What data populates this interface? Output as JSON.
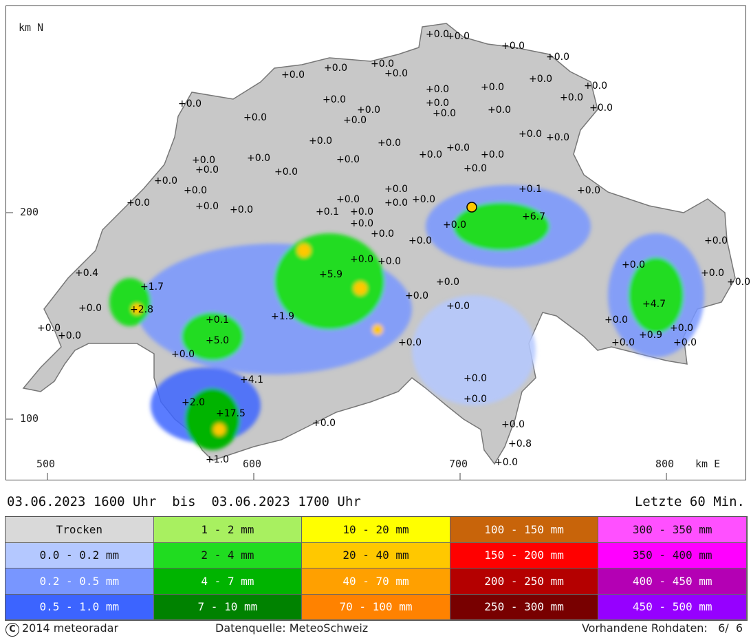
{
  "map": {
    "north_label": "km N",
    "east_label": "km E",
    "y_ticks": [
      "200",
      "100"
    ],
    "x_ticks": [
      "500",
      "600",
      "700",
      "800"
    ],
    "stations": [
      {
        "label": "+0.0"
      },
      {
        "label": "+0.0"
      },
      {
        "label": "+0.0"
      },
      {
        "label": "+0.0"
      },
      {
        "label": "+0.0"
      },
      {
        "label": "+0.0"
      },
      {
        "label": "+0.0"
      },
      {
        "label": "+0.0"
      },
      {
        "label": "+0.0"
      },
      {
        "label": "+0.0"
      },
      {
        "label": "+0.0"
      },
      {
        "label": "+0.0"
      },
      {
        "label": "+0.0"
      },
      {
        "label": "+0.0"
      },
      {
        "label": "+0.0"
      },
      {
        "label": "+0.0"
      },
      {
        "label": "+0.0"
      },
      {
        "label": "+0.0"
      },
      {
        "label": "+0.0"
      },
      {
        "label": "+0.0"
      },
      {
        "label": "+0.0"
      },
      {
        "label": "+0.0"
      },
      {
        "label": "+0.0"
      },
      {
        "label": "+0.0"
      },
      {
        "label": "+0.0"
      },
      {
        "label": "+0.0"
      },
      {
        "label": "+0.0"
      },
      {
        "label": "+0.0"
      },
      {
        "label": "+0.0"
      },
      {
        "label": "+0.0"
      },
      {
        "label": "+0.0"
      },
      {
        "label": "+0.0"
      },
      {
        "label": "+0.0"
      },
      {
        "label": "+0.0"
      },
      {
        "label": "+0.0"
      },
      {
        "label": "+0.0"
      },
      {
        "label": "+0.0"
      },
      {
        "label": "+0.0"
      },
      {
        "label": "+0.0"
      },
      {
        "label": "+0.0"
      },
      {
        "label": "+0.1"
      },
      {
        "label": "+0.0"
      },
      {
        "label": "+0.0"
      },
      {
        "label": "+0.0"
      },
      {
        "label": "+0.0"
      },
      {
        "label": "+0.0"
      },
      {
        "label": "+0.1"
      },
      {
        "label": "+0.0"
      },
      {
        "label": "+6.7"
      },
      {
        "label": "+0.0"
      },
      {
        "label": "+0.0"
      },
      {
        "label": "+0.0"
      },
      {
        "label": "+0.0"
      },
      {
        "label": "+0.4"
      },
      {
        "label": "+1.7"
      },
      {
        "label": "+2.8"
      },
      {
        "label": "+0.0"
      },
      {
        "label": "+0.0"
      },
      {
        "label": "+0.0"
      },
      {
        "label": "+5.9"
      },
      {
        "label": "+0.0"
      },
      {
        "label": "+0.0"
      },
      {
        "label": "+1.9"
      },
      {
        "label": "+0.1"
      },
      {
        "label": "+5.0"
      },
      {
        "label": "+0.0"
      },
      {
        "label": "+4.1"
      },
      {
        "label": "+2.0"
      },
      {
        "label": "+17.5"
      },
      {
        "label": "+1.0"
      },
      {
        "label": "+0.0"
      },
      {
        "label": "+0.0"
      },
      {
        "label": "+0.0"
      },
      {
        "label": "+0.0"
      },
      {
        "label": "+0.0"
      },
      {
        "label": "+4.7"
      },
      {
        "label": "+0.9"
      },
      {
        "label": "+0.0"
      },
      {
        "label": "+0.0"
      },
      {
        "label": "+0.0"
      },
      {
        "label": "+0.8"
      },
      {
        "label": "+0.0"
      },
      {
        "label": "+0.0"
      },
      {
        "label": "+0.0"
      },
      {
        "label": "+0.0"
      },
      {
        "label": "+0.0"
      },
      {
        "label": "+0.0"
      },
      {
        "label": "+0.0"
      },
      {
        "label": "+0.0"
      },
      {
        "label": "+0.0"
      }
    ]
  },
  "header": {
    "period": "03.06.2023 1600 Uhr  bis  03.06.2023 1700 Uhr",
    "window": "Letzte 60 Min."
  },
  "legend": [
    {
      "label": "Trocken",
      "color": "#d9d9d9",
      "text": "#111"
    },
    {
      "label": "1 - 2 mm",
      "color": "#a8f060",
      "text": "#111"
    },
    {
      "label": "10 - 20 mm",
      "color": "#ffff00",
      "text": "#111"
    },
    {
      "label": "100 - 150 mm",
      "color": "#c8640a",
      "text": "#ffffff"
    },
    {
      "label": "300 - 350 mm",
      "color": "#ff50ff",
      "text": "#111"
    },
    {
      "label": "0.0 - 0.2 mm",
      "color": "#b4c8ff",
      "text": "#111"
    },
    {
      "label": "2 - 4 mm",
      "color": "#20dc20",
      "text": "#111"
    },
    {
      "label": "20 - 40 mm",
      "color": "#ffc800",
      "text": "#111"
    },
    {
      "label": "150 - 200 mm",
      "color": "#ff0000",
      "text": "#ffffff"
    },
    {
      "label": "350 - 400 mm",
      "color": "#ff00ff",
      "text": "#111"
    },
    {
      "label": "0.2 - 0.5 mm",
      "color": "#7896ff",
      "text": "#ffffff"
    },
    {
      "label": "4 - 7 mm",
      "color": "#00b400",
      "text": "#ffffff"
    },
    {
      "label": "40 - 70 mm",
      "color": "#ffa000",
      "text": "#ffffff"
    },
    {
      "label": "200 - 250 mm",
      "color": "#b40000",
      "text": "#ffffff"
    },
    {
      "label": "400 - 450 mm",
      "color": "#b400b4",
      "text": "#ffffff"
    },
    {
      "label": "0.5 - 1.0 mm",
      "color": "#3c64ff",
      "text": "#ffffff"
    },
    {
      "label": "7 - 10 mm",
      "color": "#008200",
      "text": "#ffffff"
    },
    {
      "label": "70 - 100 mm",
      "color": "#ff8200",
      "text": "#ffffff"
    },
    {
      "label": "250 - 300 mm",
      "color": "#780000",
      "text": "#ffffff"
    },
    {
      "label": "450 - 500 mm",
      "color": "#9600ff",
      "text": "#ffffff"
    }
  ],
  "footer": {
    "copyright_symbol": "C",
    "copyright": "2014 meteoradar",
    "source": "Datenquelle: MeteoSchweiz",
    "rawdata": "Vorhandene Rohdaten:   6/  6"
  }
}
